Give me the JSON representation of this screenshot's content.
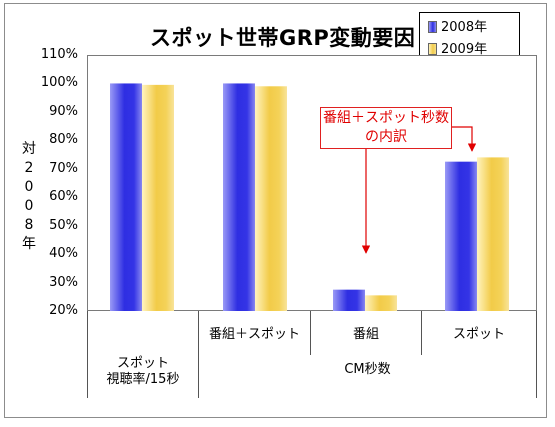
{
  "chart_data": {
    "type": "bar",
    "title": "スポット世帯GRP変動要因",
    "ylabel": "対2008年",
    "ylim": [
      20,
      110
    ],
    "yticks": [
      "110%",
      "100%",
      "90%",
      "80%",
      "70%",
      "60%",
      "50%",
      "40%",
      "30%",
      "20%"
    ],
    "categories": [
      "スポット 視聴率/15秒",
      "番組＋スポット",
      "番組",
      "スポット"
    ],
    "category_lines": [
      [
        "スポット",
        "視聴率/15秒"
      ],
      [
        "番組＋スポット"
      ],
      [
        "番組"
      ],
      [
        "スポット"
      ]
    ],
    "group_label": "CM秒数",
    "series": [
      {
        "name": "2008年",
        "values": [
          100,
          100,
          27.5,
          72.5
        ],
        "color": "#3b3bea"
      },
      {
        "name": "2009年",
        "values": [
          99.5,
          99,
          25.5,
          74
        ],
        "color": "#f5d460"
      }
    ],
    "annotation": {
      "lines": [
        "番組＋スポット秒数",
        "の内訳"
      ],
      "color": "#e00000"
    },
    "grid": false,
    "legend_position": "top-right"
  }
}
